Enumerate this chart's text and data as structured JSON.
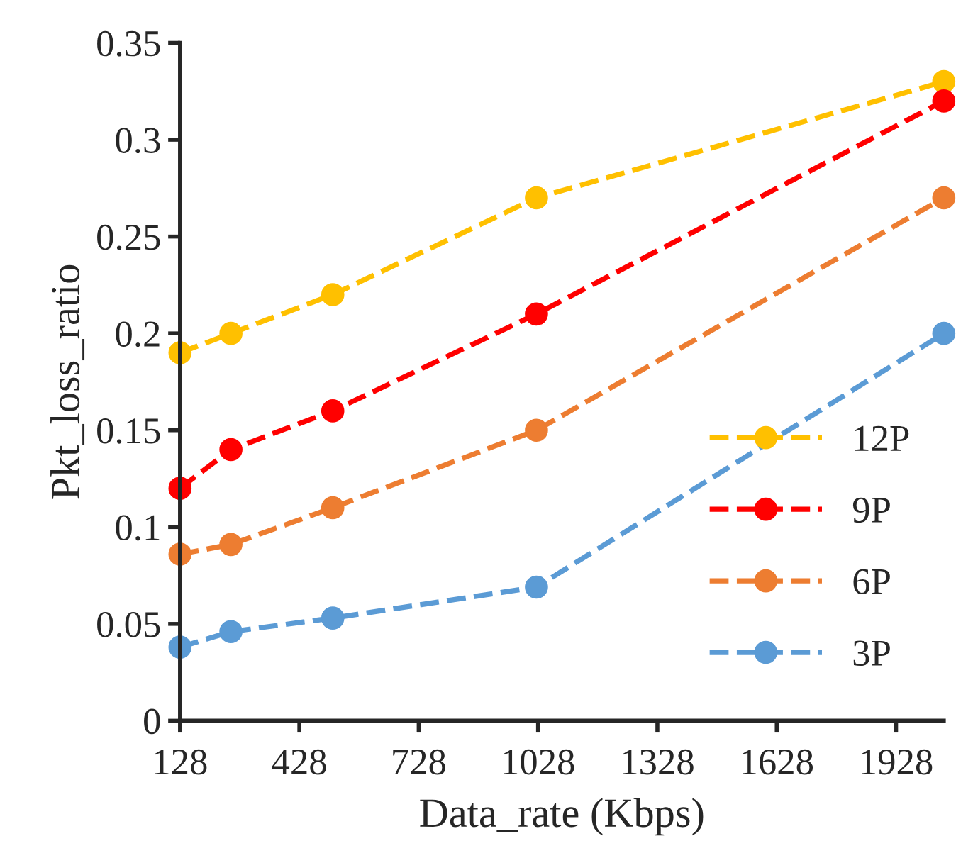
{
  "chart_data": {
    "type": "line",
    "xlabel": "Data_rate (Kbps)",
    "ylabel": "Pkt_loss_ratio",
    "x": [
      128,
      256,
      512,
      1024,
      2048
    ],
    "series": [
      {
        "name": "12P",
        "color": "#ffc000",
        "values": [
          0.19,
          0.2,
          0.22,
          0.27,
          0.33
        ]
      },
      {
        "name": "9P",
        "color": "#ff0000",
        "values": [
          0.12,
          0.14,
          0.16,
          0.21,
          0.32
        ]
      },
      {
        "name": "6P",
        "color": "#ed7d31",
        "values": [
          0.086,
          0.091,
          0.11,
          0.15,
          0.27
        ]
      },
      {
        "name": "3P",
        "color": "#5b9bd5",
        "values": [
          0.038,
          0.046,
          0.053,
          0.069,
          0.2
        ]
      }
    ],
    "xlim": [
      128,
      2048
    ],
    "xticks": [
      128,
      428,
      728,
      1028,
      1328,
      1628,
      1928
    ],
    "ylim": [
      0,
      0.35
    ],
    "yticks": [
      0,
      0.05,
      0.1,
      0.15,
      0.2,
      0.25,
      0.3,
      0.35
    ],
    "marker": "circle",
    "line_style": "dashed",
    "legend": "lower right",
    "grid": false
  }
}
